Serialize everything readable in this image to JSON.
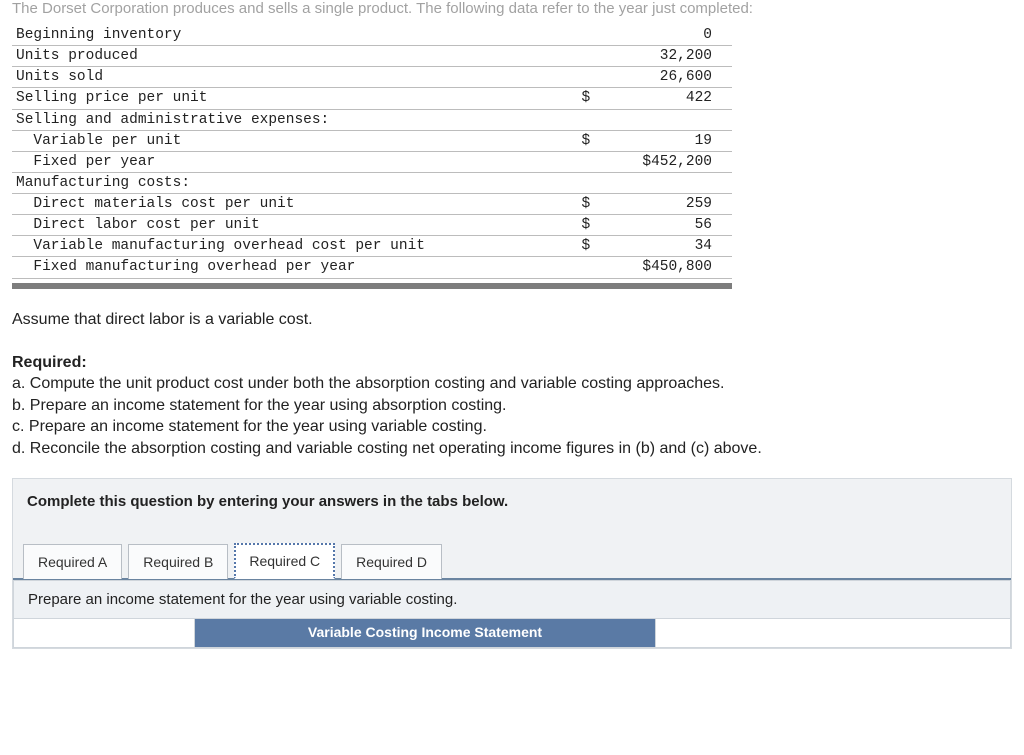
{
  "intro": "The Dorset Corporation produces and sells a single product. The following data refer to the year just completed:",
  "rows": [
    {
      "label": "Beginning inventory",
      "cur": "",
      "val": "0"
    },
    {
      "label": "Units produced",
      "cur": "",
      "val": "32,200"
    },
    {
      "label": "Units sold",
      "cur": "",
      "val": "26,600"
    },
    {
      "label": "Selling price per unit",
      "cur": "$",
      "val": "422"
    },
    {
      "label": "Selling and administrative expenses:",
      "cur": "",
      "val": ""
    },
    {
      "label": "  Variable per unit",
      "cur": "$",
      "val": "19"
    },
    {
      "label": "  Fixed per year",
      "cur": "",
      "val": "$452,200"
    },
    {
      "label": "Manufacturing costs:",
      "cur": "",
      "val": ""
    },
    {
      "label": "  Direct materials cost per unit",
      "cur": "$",
      "val": "259"
    },
    {
      "label": "  Direct labor cost per unit",
      "cur": "$",
      "val": "56"
    },
    {
      "label": "  Variable manufacturing overhead cost per unit",
      "cur": "$",
      "val": "34"
    },
    {
      "label": "  Fixed manufacturing overhead per year",
      "cur": "",
      "val": "$450,800"
    }
  ],
  "assume": "Assume that direct labor is a variable cost.",
  "required_label": "Required:",
  "required_items": [
    "a. Compute the unit product cost under both the absorption costing and variable costing approaches.",
    "b. Prepare an income statement for the year using absorption costing.",
    "c. Prepare an income statement for the year using variable costing.",
    "d. Reconcile the absorption costing and variable costing net operating income figures in (b) and (c) above."
  ],
  "instruct": "Complete this question by entering your answers in the tabs below.",
  "tabs": {
    "a": "Required A",
    "b": "Required B",
    "c": "Required C",
    "d": "Required D"
  },
  "tab_prompt": "Prepare an income statement for the year using variable costing.",
  "stmt_header": "Variable Costing Income Statement"
}
